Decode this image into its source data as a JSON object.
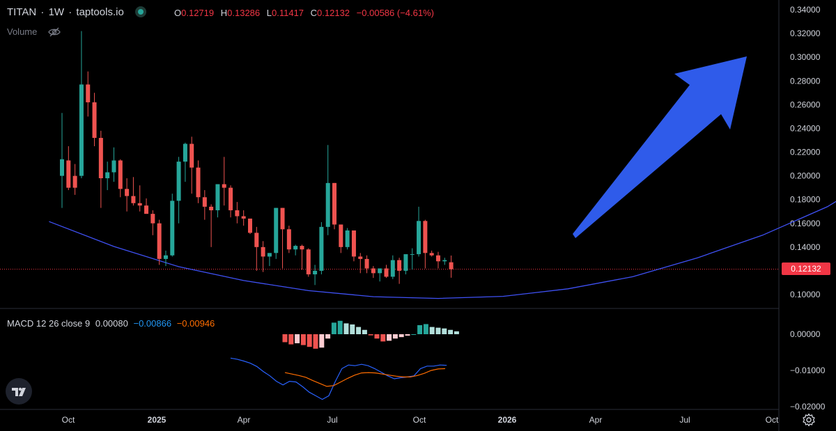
{
  "header": {
    "symbol": "TITAN",
    "sep1": "·",
    "interval": "1W",
    "sep2": "·",
    "source": "taptools.io",
    "ohlc": {
      "o_label": "O",
      "o_value": "0.12719",
      "h_label": "H",
      "h_value": "0.13286",
      "l_label": "L",
      "l_value": "0.11417",
      "c_label": "C",
      "c_value": "0.12132",
      "change": "−0.00586 (−4.61%)"
    },
    "volume_label": "Volume"
  },
  "macd_legend": {
    "title": "MACD 12 26 close 9",
    "hist": "0.00080",
    "macd": "−0.00866",
    "signal": "−0.00946"
  },
  "last_price_tag": "0.12132",
  "colors": {
    "up": "#26a69a",
    "down": "#ef5350",
    "hist_up_light": "#b2dfdb",
    "hist_down_light": "#ffcdd2",
    "macd_line": "#2962ff",
    "signal_line": "#ff6d00",
    "curve": "#3f51f5",
    "arrow": "#2f5bea",
    "price_line": "#f23645",
    "axis_text": "#d1d4dc",
    "macd_value": "#2196f3",
    "signal_value": "#ff6d00"
  },
  "icons": [
    "eye-off-icon",
    "tradingview-logo-icon",
    "settings-gear-icon"
  ],
  "chart_data": [
    {
      "type": "candlestick",
      "title": "",
      "x_ticks": [
        "Oct",
        "2025",
        "Apr",
        "Jul",
        "Oct",
        "2026",
        "Apr",
        "Jul",
        "Oct"
      ],
      "y_ticks": [
        "0.34000",
        "0.32000",
        "0.30000",
        "0.28000",
        "0.26000",
        "0.24000",
        "0.22000",
        "0.20000",
        "0.18000",
        "0.16000",
        "0.14000",
        "0.12000",
        "0.10000"
      ],
      "ylim": [
        0.09,
        0.345
      ],
      "last_price": 0.12132,
      "candles": [
        {
          "o": 0.2,
          "h": 0.253,
          "l": 0.173,
          "c": 0.214
        },
        {
          "o": 0.213,
          "h": 0.225,
          "l": 0.188,
          "c": 0.19
        },
        {
          "o": 0.2,
          "h": 0.21,
          "l": 0.184,
          "c": 0.19
        },
        {
          "o": 0.2,
          "h": 0.322,
          "l": 0.198,
          "c": 0.277
        },
        {
          "o": 0.277,
          "h": 0.288,
          "l": 0.25,
          "c": 0.262
        },
        {
          "o": 0.262,
          "h": 0.27,
          "l": 0.225,
          "c": 0.232
        },
        {
          "o": 0.232,
          "h": 0.238,
          "l": 0.173,
          "c": 0.198
        },
        {
          "o": 0.198,
          "h": 0.212,
          "l": 0.188,
          "c": 0.203
        },
        {
          "o": 0.203,
          "h": 0.224,
          "l": 0.195,
          "c": 0.213
        },
        {
          "o": 0.213,
          "h": 0.214,
          "l": 0.182,
          "c": 0.189
        },
        {
          "o": 0.189,
          "h": 0.198,
          "l": 0.17,
          "c": 0.183
        },
        {
          "o": 0.183,
          "h": 0.199,
          "l": 0.175,
          "c": 0.177
        },
        {
          "o": 0.177,
          "h": 0.192,
          "l": 0.17,
          "c": 0.175
        },
        {
          "o": 0.175,
          "h": 0.181,
          "l": 0.168,
          "c": 0.168
        },
        {
          "o": 0.168,
          "h": 0.171,
          "l": 0.15,
          "c": 0.16
        },
        {
          "o": 0.16,
          "h": 0.163,
          "l": 0.125,
          "c": 0.13
        },
        {
          "o": 0.13,
          "h": 0.137,
          "l": 0.124,
          "c": 0.133
        },
        {
          "o": 0.133,
          "h": 0.185,
          "l": 0.132,
          "c": 0.179
        },
        {
          "o": 0.179,
          "h": 0.216,
          "l": 0.16,
          "c": 0.212
        },
        {
          "o": 0.212,
          "h": 0.228,
          "l": 0.195,
          "c": 0.227
        },
        {
          "o": 0.227,
          "h": 0.233,
          "l": 0.185,
          "c": 0.207
        },
        {
          "o": 0.207,
          "h": 0.213,
          "l": 0.177,
          "c": 0.182
        },
        {
          "o": 0.182,
          "h": 0.188,
          "l": 0.163,
          "c": 0.174
        },
        {
          "o": 0.174,
          "h": 0.176,
          "l": 0.14,
          "c": 0.171
        },
        {
          "o": 0.171,
          "h": 0.193,
          "l": 0.165,
          "c": 0.193
        },
        {
          "o": 0.193,
          "h": 0.216,
          "l": 0.175,
          "c": 0.19
        },
        {
          "o": 0.19,
          "h": 0.192,
          "l": 0.165,
          "c": 0.171
        },
        {
          "o": 0.171,
          "h": 0.178,
          "l": 0.16,
          "c": 0.166
        },
        {
          "o": 0.166,
          "h": 0.171,
          "l": 0.158,
          "c": 0.164
        },
        {
          "o": 0.164,
          "h": 0.163,
          "l": 0.151,
          "c": 0.152
        },
        {
          "o": 0.152,
          "h": 0.157,
          "l": 0.12,
          "c": 0.14
        },
        {
          "o": 0.14,
          "h": 0.145,
          "l": 0.119,
          "c": 0.132
        },
        {
          "o": 0.132,
          "h": 0.135,
          "l": 0.124,
          "c": 0.135
        },
        {
          "o": 0.135,
          "h": 0.173,
          "l": 0.13,
          "c": 0.173
        },
        {
          "o": 0.173,
          "h": 0.173,
          "l": 0.122,
          "c": 0.155
        },
        {
          "o": 0.155,
          "h": 0.158,
          "l": 0.135,
          "c": 0.138
        },
        {
          "o": 0.138,
          "h": 0.142,
          "l": 0.133,
          "c": 0.141
        },
        {
          "o": 0.141,
          "h": 0.142,
          "l": 0.121,
          "c": 0.138
        },
        {
          "o": 0.138,
          "h": 0.139,
          "l": 0.115,
          "c": 0.117
        },
        {
          "o": 0.117,
          "h": 0.125,
          "l": 0.108,
          "c": 0.12
        },
        {
          "o": 0.12,
          "h": 0.161,
          "l": 0.117,
          "c": 0.157
        },
        {
          "o": 0.157,
          "h": 0.226,
          "l": 0.15,
          "c": 0.194
        },
        {
          "o": 0.194,
          "h": 0.194,
          "l": 0.155,
          "c": 0.159
        },
        {
          "o": 0.159,
          "h": 0.159,
          "l": 0.135,
          "c": 0.14
        },
        {
          "o": 0.14,
          "h": 0.156,
          "l": 0.138,
          "c": 0.154
        },
        {
          "o": 0.154,
          "h": 0.154,
          "l": 0.128,
          "c": 0.132
        },
        {
          "o": 0.132,
          "h": 0.135,
          "l": 0.118,
          "c": 0.13
        },
        {
          "o": 0.13,
          "h": 0.133,
          "l": 0.118,
          "c": 0.122
        },
        {
          "o": 0.122,
          "h": 0.124,
          "l": 0.114,
          "c": 0.118
        },
        {
          "o": 0.118,
          "h": 0.122,
          "l": 0.111,
          "c": 0.122
        },
        {
          "o": 0.122,
          "h": 0.125,
          "l": 0.114,
          "c": 0.115
        },
        {
          "o": 0.115,
          "h": 0.133,
          "l": 0.113,
          "c": 0.129
        },
        {
          "o": 0.129,
          "h": 0.131,
          "l": 0.109,
          "c": 0.12
        },
        {
          "o": 0.12,
          "h": 0.133,
          "l": 0.117,
          "c": 0.134
        },
        {
          "o": 0.134,
          "h": 0.139,
          "l": 0.121,
          "c": 0.134
        },
        {
          "o": 0.134,
          "h": 0.174,
          "l": 0.132,
          "c": 0.162
        },
        {
          "o": 0.162,
          "h": 0.163,
          "l": 0.122,
          "c": 0.135
        },
        {
          "o": 0.135,
          "h": 0.137,
          "l": 0.132,
          "c": 0.133
        },
        {
          "o": 0.133,
          "h": 0.136,
          "l": 0.122,
          "c": 0.128
        },
        {
          "o": 0.128,
          "h": 0.131,
          "l": 0.125,
          "c": 0.129
        },
        {
          "o": 0.12719,
          "h": 0.13286,
          "l": 0.11417,
          "c": 0.12132
        }
      ],
      "overlay_curve": [
        {
          "t": -2,
          "p": 0.1615
        },
        {
          "t": 8,
          "p": 0.1405
        },
        {
          "t": 18,
          "p": 0.1235
        },
        {
          "t": 28,
          "p": 0.1118
        },
        {
          "t": 38,
          "p": 0.1033
        },
        {
          "t": 48,
          "p": 0.0982
        },
        {
          "t": 58,
          "p": 0.0967
        },
        {
          "t": 68,
          "p": 0.0985
        },
        {
          "t": 78,
          "p": 0.1048
        },
        {
          "t": 88,
          "p": 0.115
        },
        {
          "t": 98,
          "p": 0.131
        },
        {
          "t": 108,
          "p": 0.15
        },
        {
          "t": 118,
          "p": 0.174
        },
        {
          "t": 129,
          "p": 0.2105
        }
      ]
    },
    {
      "type": "macd",
      "title": "MACD 12 26 close 9",
      "y_ticks": [
        "0.00000",
        "−0.01000",
        "−0.02000"
      ],
      "ylim": [
        -0.0205,
        0.006
      ],
      "histogram": [
        -0.0022,
        -0.0028,
        -0.0025,
        -0.003,
        -0.0035,
        -0.004,
        -0.0037,
        -0.0012,
        0.0032,
        0.0037,
        0.003,
        0.0027,
        0.002,
        0.0012,
        -0.0003,
        -0.0012,
        -0.002,
        -0.0018,
        -0.0012,
        -0.0008,
        -0.0004,
        0.0,
        0.0025,
        0.0028,
        0.002,
        0.0018,
        0.0016,
        0.0012,
        0.0008
      ],
      "macd_line": [
        -0.0066,
        -0.0069,
        -0.0074,
        -0.008,
        -0.0089,
        -0.0103,
        -0.0115,
        -0.013,
        -0.014,
        -0.013,
        -0.0132,
        -0.0145,
        -0.016,
        -0.017,
        -0.018,
        -0.017,
        -0.013,
        -0.0095,
        -0.0085,
        -0.0087,
        -0.0083,
        -0.0087,
        -0.0095,
        -0.0105,
        -0.0115,
        -0.0123,
        -0.012,
        -0.0118,
        -0.0115,
        -0.0095,
        -0.0088,
        -0.0088,
        -0.0085,
        -0.0086
      ],
      "signal_line": [
        -0.0106,
        -0.011,
        -0.0114,
        -0.0119,
        -0.0128,
        -0.0136,
        -0.0144,
        -0.0142,
        -0.0132,
        -0.0122,
        -0.0113,
        -0.0107,
        -0.0106,
        -0.0107,
        -0.011,
        -0.0113,
        -0.0116,
        -0.0118,
        -0.0118,
        -0.0114,
        -0.0108,
        -0.01,
        -0.0096,
        -0.0095
      ],
      "last": {
        "hist": 0.0008,
        "macd": -0.00866,
        "signal": -0.00946
      }
    }
  ]
}
